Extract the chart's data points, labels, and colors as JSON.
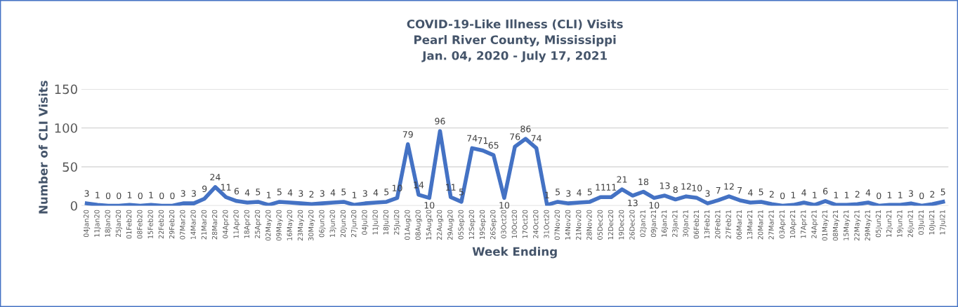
{
  "chart_data": {
    "type": "line",
    "title": "COVID-19-Like Illness (CLI) Visits\nPearl River County, Mississippi\nJan. 04, 2020 - July 17, 2021",
    "xlabel": "Week Ending",
    "ylabel": "Number of CLI Visits",
    "categories": [
      "04Jan20",
      "11Jan20",
      "18Jan20",
      "25Jan20",
      "01Feb20",
      "08Feb20",
      "15Feb20",
      "22Feb20",
      "29Feb20",
      "07Mar20",
      "14Mar20",
      "21Mar20",
      "28Mar20",
      "04Apr20",
      "11Apr20",
      "18Apr20",
      "25Apr20",
      "02May20",
      "09May20",
      "16May20",
      "23May20",
      "30May20",
      "06Jun20",
      "13Jun20",
      "20Jun20",
      "27Jun20",
      "04Jul20",
      "11Jul20",
      "18Jul20",
      "25Jul20",
      "01Aug20",
      "08Aug20",
      "15Aug20",
      "22Aug20",
      "29Aug20",
      "05Sep20",
      "12Sep20",
      "19Sep20",
      "26Sep20",
      "03Oct20",
      "10Oct20",
      "17Oct20",
      "24Oct20",
      "31Oct20",
      "07Nov20",
      "14Nov20",
      "21Nov20",
      "28Nov20",
      "05Dec20",
      "12Dec20",
      "19Dec20",
      "26Dec20",
      "02Jan21",
      "09Jan21",
      "16Jan21",
      "23Jan21",
      "30Jan21",
      "06Feb21",
      "13Feb21",
      "20Feb21",
      "27Feb21",
      "06Mar21",
      "13Mar21",
      "20Mar21",
      "27Mar21",
      "03Apr21",
      "10Apr21",
      "17Apr21",
      "24Apr21",
      "01May21",
      "08May21",
      "15May21",
      "22May21",
      "29May21",
      "05Jun21",
      "12Jun21",
      "19Jun21",
      "26Jun21",
      "03Jul21",
      "10Jul21",
      "17Jul21"
    ],
    "series": [
      {
        "color": "#4472c4",
        "values": [
          3,
          1,
          0,
          0,
          1,
          0,
          1,
          0,
          0,
          3,
          3,
          9,
          24,
          11,
          6,
          4,
          5,
          1,
          5,
          4,
          3,
          2,
          3,
          4,
          5,
          1,
          3,
          4,
          5,
          10,
          79,
          14,
          10,
          96,
          11,
          5,
          74,
          71,
          65,
          10,
          76,
          86,
          74,
          1,
          5,
          3,
          4,
          5,
          11,
          11,
          21,
          13,
          18,
          10,
          13,
          8,
          12,
          10,
          3,
          7,
          12,
          7,
          4,
          5,
          2,
          0,
          1,
          4,
          1,
          6,
          1,
          1,
          2,
          4,
          0,
          1,
          1,
          3,
          0,
          2,
          5
        ]
      }
    ],
    "ylim": [
      0,
      150
    ],
    "yticks": [
      0,
      50,
      100,
      150
    ],
    "grid": "y",
    "data_labels": true,
    "legend": false,
    "marker": "none",
    "line_style": "solid"
  }
}
